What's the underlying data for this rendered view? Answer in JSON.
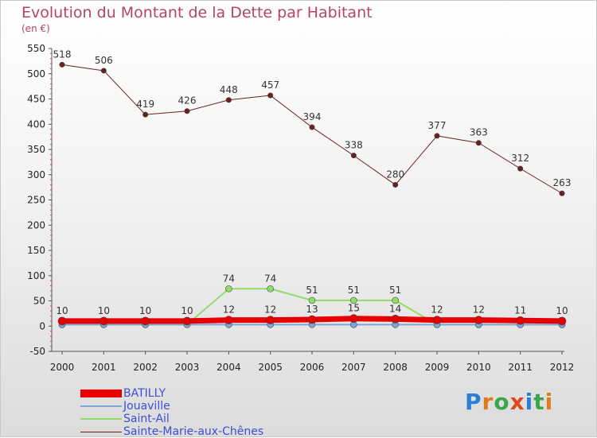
{
  "title": "Evolution du Montant de la Dette par Habitant",
  "subtitle": "(en €)",
  "brand": {
    "text": "Proxiti",
    "letters": [
      {
        "ch": "P",
        "color": "#2a7fd4"
      },
      {
        "ch": "r",
        "color": "#e07b1a"
      },
      {
        "ch": "o",
        "color": "#3aa64a"
      },
      {
        "ch": "x",
        "color": "#e04a1a"
      },
      {
        "ch": "i",
        "color": "#2a7fd4"
      },
      {
        "ch": "t",
        "color": "#3aa64a"
      },
      {
        "ch": "i",
        "color": "#e07b1a"
      }
    ]
  },
  "chart_data": {
    "type": "line",
    "title": "Evolution du Montant de la Dette par Habitant",
    "subtitle": "(en €)",
    "x": [
      "2000",
      "2001",
      "2002",
      "2003",
      "2004",
      "2005",
      "2006",
      "2007",
      "2008",
      "2009",
      "2010",
      "2011",
      "2012"
    ],
    "ylim": [
      -50,
      550
    ],
    "yticks": [
      -50,
      0,
      50,
      100,
      150,
      200,
      250,
      300,
      350,
      400,
      450,
      500,
      550
    ],
    "grid": false,
    "legend_position": "bottom-left",
    "series": [
      {
        "name": "BATILLY",
        "color": "#e80000",
        "values": [
          10,
          10,
          10,
          10,
          12,
          12,
          13,
          15,
          14,
          12,
          12,
          11,
          10
        ],
        "labels_shown": true
      },
      {
        "name": "Jouaville",
        "color": "#7ba7d6",
        "values": [
          3,
          3,
          3,
          3,
          3,
          3,
          3,
          3,
          3,
          3,
          3,
          3,
          3
        ],
        "labels_shown": false
      },
      {
        "name": "Saint-Ail",
        "color": "#92dd6a",
        "values": [
          3,
          3,
          3,
          3,
          74,
          74,
          51,
          51,
          51,
          3,
          3,
          3,
          3
        ],
        "label_values": [
          null,
          null,
          null,
          null,
          74,
          74,
          51,
          51,
          51,
          null,
          null,
          null,
          null
        ],
        "labels_shown": true
      },
      {
        "name": "Sainte-Marie-aux-Chênes",
        "color": "#6b1f1f",
        "values": [
          518,
          506,
          419,
          426,
          448,
          457,
          394,
          338,
          280,
          377,
          363,
          312,
          263
        ],
        "labels_shown": true
      }
    ]
  }
}
